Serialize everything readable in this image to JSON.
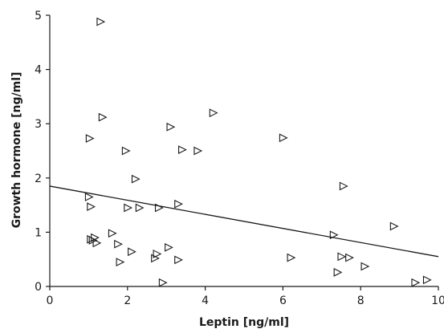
{
  "chart_data": {
    "type": "scatter",
    "title": "",
    "xlabel": "Leptin [ng/ml]",
    "ylabel": "Growth hormone [ng/ml]",
    "xlim": [
      0,
      10
    ],
    "ylim": [
      0,
      5
    ],
    "xticks": [
      "0",
      "2",
      "4",
      "6",
      "8",
      "10"
    ],
    "yticks": [
      "0",
      "1",
      "2",
      "3",
      "4",
      "5"
    ],
    "grid": false,
    "legend": "none",
    "marker": "open-triangle-right",
    "colors": {
      "marker": "#1a1a1a",
      "line": "#1a1a1a",
      "axis": "#1a1a1a"
    },
    "series": [
      {
        "points": [
          [
            1.3,
            4.88
          ],
          [
            1.35,
            3.12
          ],
          [
            1.02,
            2.73
          ],
          [
            1.0,
            1.65
          ],
          [
            1.05,
            1.47
          ],
          [
            1.05,
            0.87
          ],
          [
            1.1,
            0.85
          ],
          [
            1.15,
            0.9
          ],
          [
            1.2,
            0.8
          ],
          [
            1.6,
            0.98
          ],
          [
            1.75,
            0.78
          ],
          [
            1.8,
            0.45
          ],
          [
            1.95,
            2.5
          ],
          [
            2.0,
            1.45
          ],
          [
            2.1,
            0.64
          ],
          [
            2.2,
            1.98
          ],
          [
            2.3,
            1.45
          ],
          [
            2.7,
            0.52
          ],
          [
            2.75,
            0.6
          ],
          [
            2.8,
            1.45
          ],
          [
            2.9,
            0.07
          ],
          [
            3.05,
            0.72
          ],
          [
            3.1,
            2.94
          ],
          [
            3.3,
            1.52
          ],
          [
            3.3,
            0.49
          ],
          [
            3.4,
            2.52
          ],
          [
            3.8,
            2.5
          ],
          [
            4.2,
            3.2
          ],
          [
            6.0,
            2.74
          ],
          [
            6.2,
            0.53
          ],
          [
            7.3,
            0.95
          ],
          [
            7.4,
            0.26
          ],
          [
            7.5,
            0.55
          ],
          [
            7.55,
            1.85
          ],
          [
            7.7,
            0.53
          ],
          [
            8.1,
            0.37
          ],
          [
            8.85,
            1.11
          ],
          [
            9.4,
            0.07
          ],
          [
            9.7,
            0.12
          ]
        ]
      }
    ],
    "trendline": {
      "x": [
        0,
        10
      ],
      "y": [
        1.85,
        0.55
      ]
    }
  }
}
